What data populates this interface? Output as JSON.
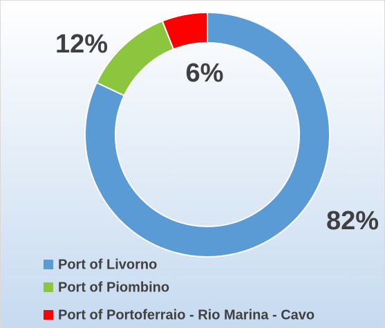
{
  "chart_data": {
    "type": "donut",
    "categories": [
      "Port of Livorno",
      "Port of Piombino",
      "Port of Portoferraio - Rio Marina - Cavo"
    ],
    "values": [
      82,
      12,
      6
    ],
    "value_labels": [
      "82%",
      "12%",
      "6%"
    ],
    "colors": [
      "#5b9bd5",
      "#8cc63e",
      "#ff0000"
    ],
    "legend": "bottom-left"
  }
}
